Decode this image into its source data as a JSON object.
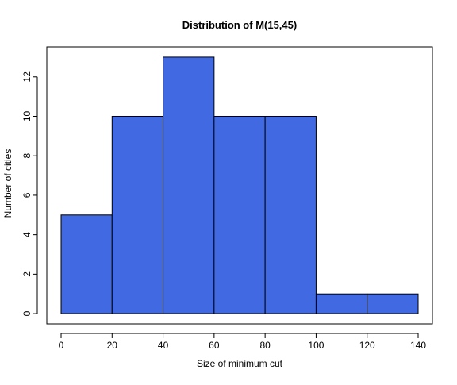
{
  "chart_data": {
    "type": "bar",
    "subtype": "histogram",
    "title": "Distribution of M(15,45)",
    "xlabel": "Size of minimum cut",
    "ylabel": "Number of cities",
    "bins": [
      {
        "x0": 0,
        "x1": 20,
        "count": 5
      },
      {
        "x0": 20,
        "x1": 40,
        "count": 10
      },
      {
        "x0": 40,
        "x1": 60,
        "count": 13
      },
      {
        "x0": 60,
        "x1": 80,
        "count": 10
      },
      {
        "x0": 80,
        "x1": 100,
        "count": 10
      },
      {
        "x0": 100,
        "x1": 120,
        "count": 1
      },
      {
        "x0": 120,
        "x1": 140,
        "count": 1
      }
    ],
    "xlim": [
      -5.6,
      145.6
    ],
    "ylim": [
      -0.52,
      13.52
    ],
    "x_ticks": [
      0,
      20,
      40,
      60,
      80,
      100,
      120,
      140
    ],
    "y_ticks": [
      0,
      2,
      4,
      6,
      8,
      10,
      12
    ],
    "grid": false,
    "legend": "none",
    "bar_color": "#4169E1",
    "edge_color": "#000000"
  }
}
